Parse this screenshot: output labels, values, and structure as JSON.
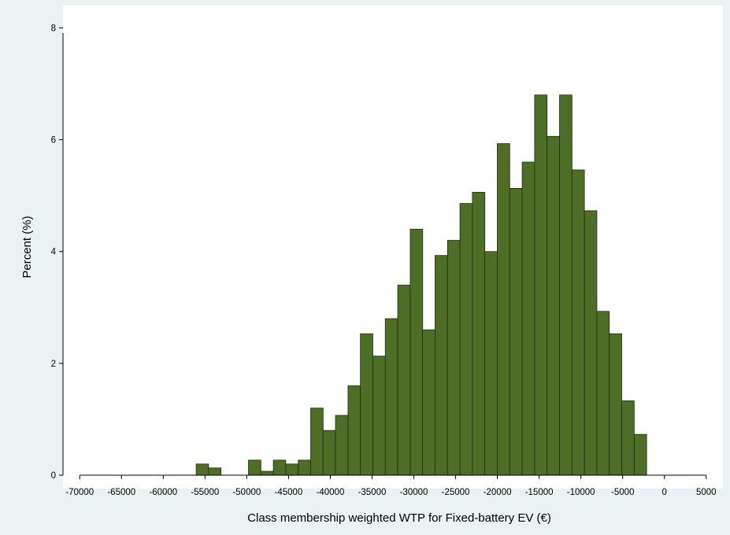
{
  "chart_data": {
    "type": "bar",
    "title": "",
    "xlabel": "Class membership weighted WTP for Fixed-battery EV (€)",
    "ylabel": "Percent (%)",
    "xlim": [
      -72000,
      7000
    ],
    "ylim": [
      0,
      8.4
    ],
    "xticks": [
      -70000,
      -65000,
      -60000,
      -55000,
      -50000,
      -45000,
      -40000,
      -35000,
      -30000,
      -25000,
      -20000,
      -15000,
      -10000,
      -5000,
      0,
      5000
    ],
    "yticks": [
      0,
      2,
      4,
      6,
      8
    ],
    "bin_width": 1490,
    "bins": [
      {
        "start": -56060,
        "value": 0.2
      },
      {
        "start": -54570,
        "value": 0.13
      },
      {
        "start": -49800,
        "value": 0.27
      },
      {
        "start": -48300,
        "value": 0.07
      },
      {
        "start": -46820,
        "value": 0.27
      },
      {
        "start": -45330,
        "value": 0.2
      },
      {
        "start": -43840,
        "value": 0.27
      },
      {
        "start": -42350,
        "value": 1.2
      },
      {
        "start": -40870,
        "value": 0.8
      },
      {
        "start": -39380,
        "value": 1.07
      },
      {
        "start": -37880,
        "value": 1.6
      },
      {
        "start": -36400,
        "value": 2.53
      },
      {
        "start": -34900,
        "value": 2.13
      },
      {
        "start": -33420,
        "value": 2.8
      },
      {
        "start": -31930,
        "value": 3.4
      },
      {
        "start": -30430,
        "value": 4.4
      },
      {
        "start": -28950,
        "value": 2.6
      },
      {
        "start": -27460,
        "value": 3.93
      },
      {
        "start": -25970,
        "value": 4.2
      },
      {
        "start": -24480,
        "value": 4.86
      },
      {
        "start": -22990,
        "value": 5.06
      },
      {
        "start": -21500,
        "value": 4.0
      },
      {
        "start": -20010,
        "value": 5.93
      },
      {
        "start": -18520,
        "value": 5.13
      },
      {
        "start": -17030,
        "value": 5.6
      },
      {
        "start": -15540,
        "value": 6.8
      },
      {
        "start": -14050,
        "value": 6.06
      },
      {
        "start": -12560,
        "value": 6.8
      },
      {
        "start": -11070,
        "value": 5.46
      },
      {
        "start": -9580,
        "value": 4.73
      },
      {
        "start": -8090,
        "value": 2.93
      },
      {
        "start": -6600,
        "value": 2.53
      },
      {
        "start": -5110,
        "value": 1.33
      },
      {
        "start": -3620,
        "value": 0.73
      }
    ],
    "bar_color": "#4e6e28",
    "bar_edge": "#1e2e0f",
    "plot_background": "#ffffff",
    "page_background": "#eaf2f3",
    "grid": false,
    "legend": "none"
  }
}
